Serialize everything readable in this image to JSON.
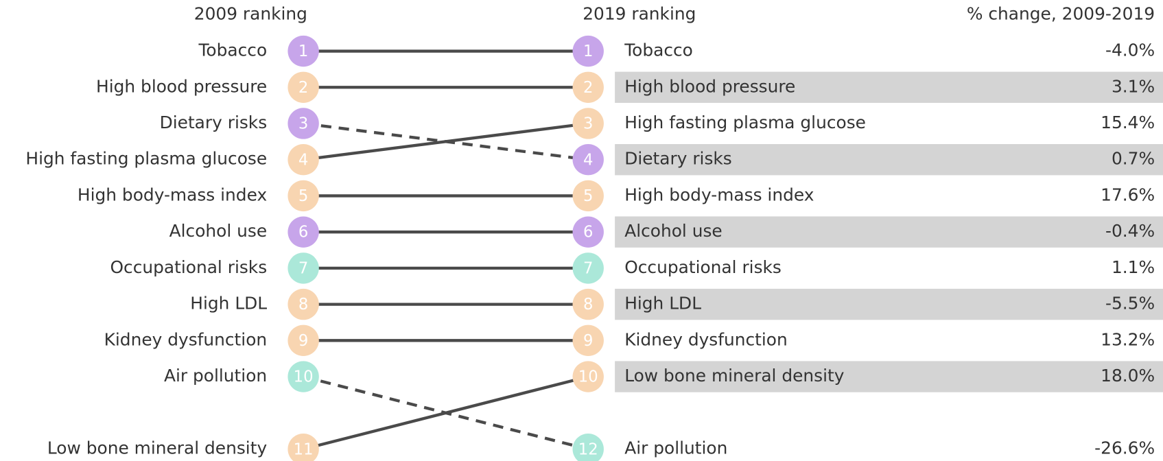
{
  "header": {
    "left": "2009 ranking",
    "middle": "2019 ranking",
    "right": "% change, 2009-2019"
  },
  "left": [
    {
      "rank": "1",
      "label": "Tobacco",
      "color": "#c7a5ea"
    },
    {
      "rank": "2",
      "label": "High blood pressure",
      "color": "#f8d5b1"
    },
    {
      "rank": "3",
      "label": "Dietary risks",
      "color": "#c7a5ea"
    },
    {
      "rank": "4",
      "label": "High fasting plasma glucose",
      "color": "#f8d5b1"
    },
    {
      "rank": "5",
      "label": "High body-mass index",
      "color": "#f8d5b1"
    },
    {
      "rank": "6",
      "label": "Alcohol use",
      "color": "#c7a5ea"
    },
    {
      "rank": "7",
      "label": "Occupational risks",
      "color": "#abe8d9"
    },
    {
      "rank": "8",
      "label": "High LDL",
      "color": "#f8d5b1"
    },
    {
      "rank": "9",
      "label": "Kidney dysfunction",
      "color": "#f8d5b1"
    },
    {
      "rank": "10",
      "label": "Air pollution",
      "color": "#abe8d9"
    },
    {
      "rank": "11",
      "label": "Low bone mineral density",
      "color": "#f8d5b1"
    }
  ],
  "right": [
    {
      "rank": "1",
      "label": "Tobacco",
      "change": "-4.0%"
    },
    {
      "rank": "2",
      "label": "High blood pressure",
      "change": "3.1%"
    },
    {
      "rank": "3",
      "label": "High fasting plasma glucose",
      "change": "15.4%"
    },
    {
      "rank": "4",
      "label": "Dietary risks",
      "change": "0.7%"
    },
    {
      "rank": "5",
      "label": "High body-mass index",
      "change": "17.6%"
    },
    {
      "rank": "6",
      "label": "Alcohol use",
      "change": "-0.4%"
    },
    {
      "rank": "7",
      "label": "Occupational risks",
      "change": "1.1%"
    },
    {
      "rank": "8",
      "label": "High LDL",
      "change": "-5.5%"
    },
    {
      "rank": "9",
      "label": "Kidney dysfunction",
      "change": "13.2%"
    },
    {
      "rank": "10",
      "label": "Low bone mineral density",
      "change": "18.0%"
    },
    {
      "rank": "12",
      "label": "Air pollution",
      "change": "-26.6%"
    }
  ]
}
